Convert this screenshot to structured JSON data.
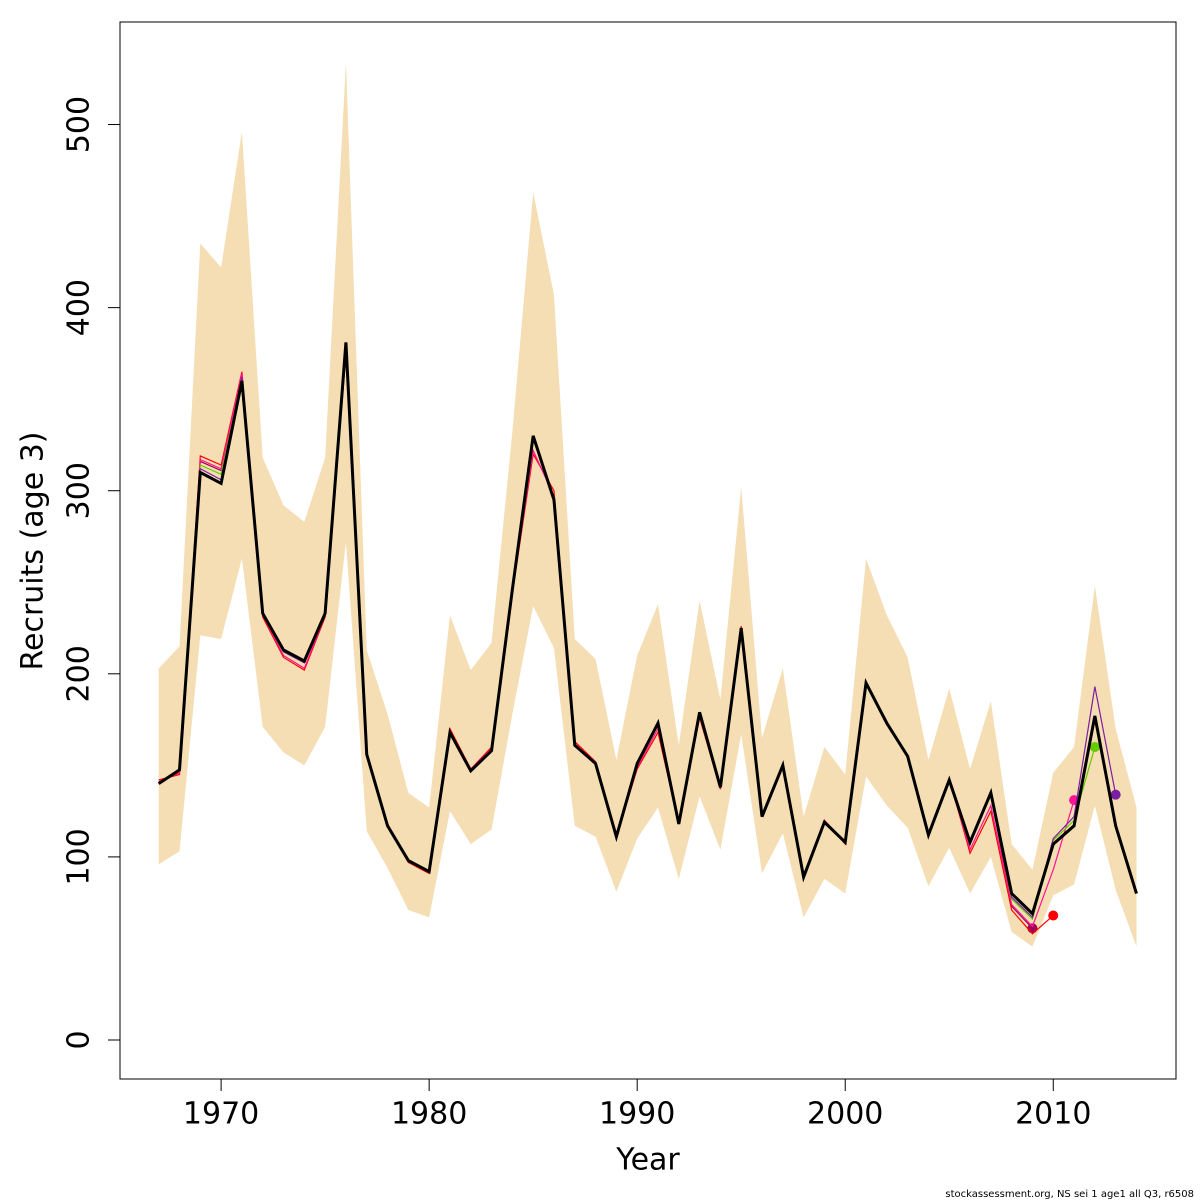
{
  "chart_data": {
    "type": "line",
    "x_label": "Year",
    "y_label": "Recruits (age 3)",
    "footnote": "stockassessment.org, NS sei 1 age1 all Q3, r6508",
    "x": [
      1967,
      1968,
      1969,
      1970,
      1971,
      1972,
      1973,
      1974,
      1975,
      1976,
      1977,
      1978,
      1979,
      1980,
      1981,
      1982,
      1983,
      1984,
      1985,
      1986,
      1987,
      1988,
      1989,
      1990,
      1991,
      1992,
      1993,
      1994,
      1995,
      1996,
      1997,
      1998,
      1999,
      2000,
      2001,
      2002,
      2003,
      2004,
      2005,
      2006,
      2007,
      2008,
      2009,
      2010,
      2011,
      2012,
      2013,
      2014
    ],
    "band": {
      "color": "#f5deb3",
      "upper": [
        203,
        215,
        435,
        422,
        496,
        318,
        292,
        283,
        318,
        534,
        213,
        178,
        135,
        127,
        232,
        202,
        217,
        332,
        463,
        407,
        219,
        208,
        153,
        210,
        238,
        161,
        240,
        186,
        302,
        165,
        203,
        122,
        160,
        145,
        263,
        232,
        209,
        153,
        192,
        148,
        185,
        107,
        93,
        146,
        160,
        248,
        170,
        127
      ],
      "lower": [
        96,
        103,
        221,
        219,
        263,
        171,
        157,
        150,
        171,
        272,
        114,
        94,
        71,
        67,
        125,
        107,
        115,
        178,
        237,
        214,
        117,
        111,
        81,
        110,
        127,
        88,
        133,
        104,
        167,
        91,
        113,
        67,
        88,
        80,
        144,
        128,
        116,
        84,
        105,
        80,
        100,
        59,
        51,
        79,
        85,
        128,
        82,
        51
      ]
    },
    "series": [
      {
        "color": "#a0005a",
        "values": [
          140,
          147,
          316,
          311,
          360,
          233,
          213,
          207,
          233,
          381,
          156,
          117,
          98,
          92,
          168,
          147,
          158,
          246,
          330,
          295,
          161,
          151,
          111,
          151,
          173,
          118,
          179,
          138,
          225,
          122,
          150,
          89,
          119,
          108,
          195,
          173,
          155,
          112,
          142,
          108,
          135,
          73,
          61,
          null,
          null,
          null,
          null,
          null
        ]
      },
      {
        "color": "#ff0000",
        "values": [
          142,
          145,
          319,
          314,
          365,
          231,
          209,
          202,
          231,
          375,
          157,
          118,
          97,
          91,
          170,
          148,
          160,
          244,
          320,
          300,
          163,
          152,
          111,
          148,
          168,
          118,
          176,
          137,
          226,
          122,
          151,
          89,
          120,
          107,
          195,
          174,
          155,
          112,
          143,
          102,
          125,
          71,
          58,
          68,
          null,
          null,
          null,
          null
        ]
      },
      {
        "color": "#ff1493",
        "values": [
          141,
          146,
          317,
          312,
          364,
          232,
          210,
          203,
          232,
          377,
          157,
          118,
          98,
          92,
          169,
          148,
          159,
          245,
          322,
          297,
          162,
          151,
          111,
          149,
          170,
          118,
          177,
          138,
          225,
          122,
          151,
          89,
          120,
          108,
          195,
          174,
          155,
          112,
          142,
          104,
          128,
          74,
          62,
          93,
          131,
          null,
          null,
          null
        ]
      },
      {
        "color": "#66cc00",
        "values": [
          140,
          147,
          314,
          309,
          361,
          233,
          212,
          206,
          233,
          380,
          156,
          117,
          98,
          92,
          168,
          147,
          158,
          246,
          328,
          296,
          161,
          151,
          111,
          151,
          172,
          118,
          178,
          138,
          225,
          122,
          150,
          89,
          119,
          108,
          195,
          173,
          155,
          112,
          142,
          108,
          134,
          77,
          66,
          109,
          120,
          160,
          null,
          null
        ]
      },
      {
        "color": "#7b1fa2",
        "values": [
          140,
          147,
          312,
          306,
          362,
          233,
          212,
          206,
          233,
          380,
          156,
          117,
          98,
          92,
          168,
          147,
          158,
          246,
          329,
          295,
          161,
          151,
          111,
          151,
          173,
          118,
          179,
          138,
          225,
          122,
          150,
          89,
          119,
          108,
          195,
          173,
          155,
          112,
          142,
          108,
          135,
          78,
          67,
          110,
          122,
          193,
          134,
          null
        ]
      },
      {
        "color": "#000000",
        "values": [
          140,
          147.5,
          310,
          304,
          360,
          233,
          213,
          207,
          233,
          381,
          156,
          117,
          98,
          92,
          168,
          147,
          158,
          246,
          330,
          295,
          161,
          151,
          111,
          151,
          173,
          118,
          179,
          138,
          225,
          122,
          150,
          89,
          119,
          108,
          195,
          173,
          155,
          112,
          142,
          108,
          135,
          80,
          69,
          107,
          117,
          177,
          117,
          80
        ]
      }
    ],
    "xlim": [
      1965.14,
      2015.9
    ],
    "ylim": [
      -21.3,
      556
    ],
    "xticks": [
      1970,
      1980,
      1990,
      2000,
      2010
    ],
    "yticks": [
      0,
      100,
      200,
      300,
      400,
      500
    ]
  }
}
